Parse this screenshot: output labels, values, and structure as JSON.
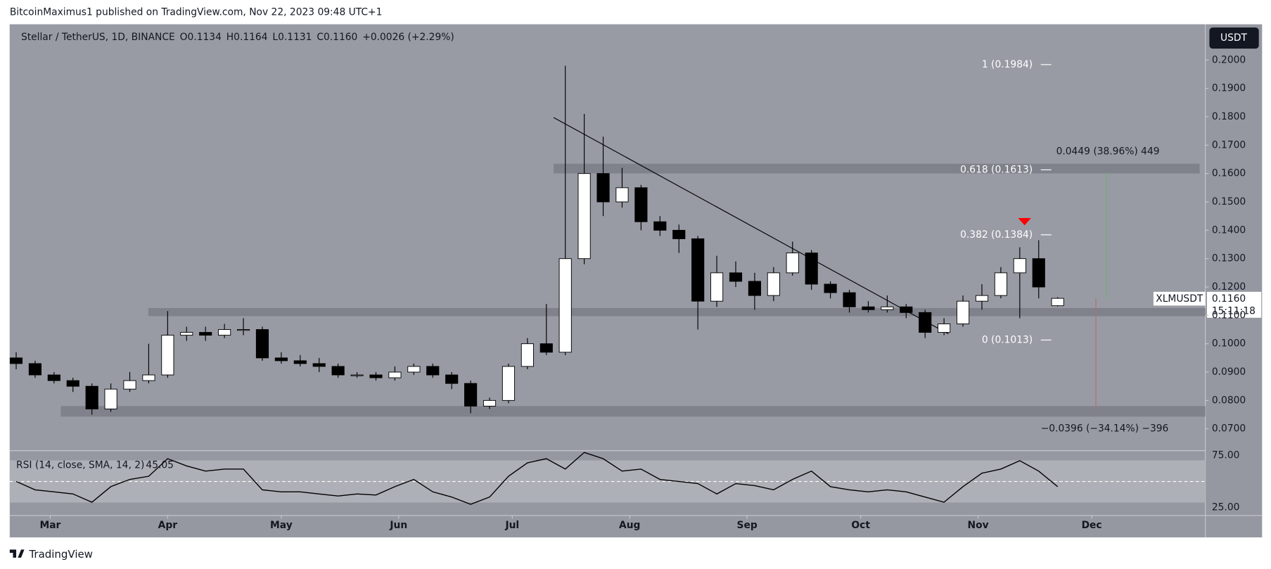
{
  "header": {
    "published": "BitcoinMaximus1 published on TradingView.com, Nov 22, 2023 09:48 UTC+1"
  },
  "footer": {
    "brand": "TradingView"
  },
  "chart_data": {
    "type": "candlestick",
    "legend": {
      "symbol": "Stellar / TetherUS, 1D, BINANCE",
      "ohlc": [
        "O0.1134",
        "H0.1164",
        "L0.1131",
        "C0.1160"
      ],
      "change": "+0.0026 (+2.29%)"
    },
    "currency": "USDT",
    "price_label": {
      "symbol": "XLMUSDT",
      "price": "0.1160",
      "countdown": "15:11:18"
    },
    "up_color": "#ffffff",
    "down_color": "#000000",
    "x": [
      -9,
      -4,
      1,
      6,
      11,
      16,
      21,
      26,
      31,
      36,
      41,
      46,
      51,
      56,
      61,
      66,
      71,
      76,
      81,
      86,
      91,
      96,
      101,
      106,
      111,
      116,
      121,
      126,
      131,
      136,
      141,
      146,
      151,
      156,
      161,
      166,
      171,
      176,
      181,
      186,
      191,
      196,
      201,
      206,
      211,
      216,
      221,
      226,
      231,
      236,
      241,
      246,
      251,
      256,
      261,
      266
    ],
    "open": [
      0.095,
      0.093,
      0.089,
      0.087,
      0.085,
      0.077,
      0.084,
      0.087,
      0.089,
      0.103,
      0.104,
      0.103,
      0.105,
      0.105,
      0.095,
      0.094,
      0.093,
      0.092,
      0.089,
      0.089,
      0.088,
      0.09,
      0.092,
      0.089,
      0.086,
      0.078,
      0.08,
      0.092,
      0.1,
      0.097,
      0.13,
      0.16,
      0.15,
      0.155,
      0.143,
      0.14,
      0.137,
      0.115,
      0.125,
      0.122,
      0.117,
      0.125,
      0.132,
      0.121,
      0.118,
      0.113,
      0.112,
      0.113,
      0.111,
      0.104,
      0.107,
      0.115,
      0.117,
      0.125,
      0.13,
      0.1134
    ],
    "high": [
      0.097,
      0.094,
      0.09,
      0.088,
      0.086,
      0.086,
      0.09,
      0.1,
      0.1115,
      0.106,
      0.106,
      0.107,
      0.109,
      0.106,
      0.097,
      0.096,
      0.095,
      0.093,
      0.09,
      0.09,
      0.092,
      0.093,
      0.093,
      0.09,
      0.087,
      0.081,
      0.093,
      0.102,
      0.114,
      0.198,
      0.181,
      0.173,
      0.162,
      0.156,
      0.145,
      0.142,
      0.138,
      0.131,
      0.129,
      0.125,
      0.127,
      0.136,
      0.133,
      0.122,
      0.119,
      0.115,
      0.117,
      0.114,
      0.112,
      0.109,
      0.117,
      0.121,
      0.127,
      0.134,
      0.1365,
      0.1164
    ],
    "low": [
      0.091,
      0.088,
      0.086,
      0.083,
      0.075,
      0.076,
      0.083,
      0.086,
      0.088,
      0.101,
      0.101,
      0.102,
      0.103,
      0.094,
      0.093,
      0.092,
      0.09,
      0.088,
      0.088,
      0.087,
      0.087,
      0.089,
      0.088,
      0.084,
      0.0755,
      0.077,
      0.079,
      0.091,
      0.096,
      0.096,
      0.128,
      0.145,
      0.148,
      0.14,
      0.138,
      0.132,
      0.105,
      0.113,
      0.12,
      0.112,
      0.115,
      0.124,
      0.119,
      0.116,
      0.111,
      0.111,
      0.111,
      0.109,
      0.102,
      0.103,
      0.106,
      0.112,
      0.116,
      0.109,
      0.116,
      0.1131
    ],
    "close": [
      0.093,
      0.089,
      0.087,
      0.085,
      0.077,
      0.084,
      0.087,
      0.089,
      0.103,
      0.104,
      0.103,
      0.105,
      0.105,
      0.095,
      0.094,
      0.093,
      0.092,
      0.089,
      0.089,
      0.088,
      0.09,
      0.092,
      0.089,
      0.086,
      0.078,
      0.08,
      0.092,
      0.1,
      0.097,
      0.13,
      0.16,
      0.15,
      0.155,
      0.143,
      0.14,
      0.137,
      0.115,
      0.125,
      0.122,
      0.117,
      0.125,
      0.132,
      0.121,
      0.118,
      0.113,
      0.112,
      0.113,
      0.111,
      0.104,
      0.107,
      0.115,
      0.117,
      0.125,
      0.13,
      0.12,
      0.116
    ],
    "xlim": [
      -10.7,
      305
    ],
    "xticks": [
      {
        "value": 0,
        "label": "Mar"
      },
      {
        "value": 31,
        "label": "Apr"
      },
      {
        "value": 61,
        "label": "May"
      },
      {
        "value": 92,
        "label": "Jun"
      },
      {
        "value": 122,
        "label": "Jul"
      },
      {
        "value": 153,
        "label": "Aug"
      },
      {
        "value": 184,
        "label": "Sep"
      },
      {
        "value": 214,
        "label": "Oct"
      },
      {
        "value": 245,
        "label": "Nov"
      },
      {
        "value": 275,
        "label": "Dec"
      }
    ],
    "ylim": [
      0.0623,
      0.2126
    ],
    "yticks": [
      {
        "value": 0.07,
        "label": "0.0700"
      },
      {
        "value": 0.08,
        "label": "0.0800"
      },
      {
        "value": 0.09,
        "label": "0.0900"
      },
      {
        "value": 0.1,
        "label": "0.1000"
      },
      {
        "value": 0.11,
        "label": "0.1100"
      },
      {
        "value": 0.12,
        "label": "0.1200"
      },
      {
        "value": 0.13,
        "label": "0.1300"
      },
      {
        "value": 0.14,
        "label": "0.1400"
      },
      {
        "value": 0.15,
        "label": "0.1500"
      },
      {
        "value": 0.16,
        "label": "0.1600"
      },
      {
        "value": 0.17,
        "label": "0.1700"
      },
      {
        "value": 0.18,
        "label": "0.1800"
      },
      {
        "value": 0.19,
        "label": "0.1900"
      },
      {
        "value": 0.2,
        "label": "0.2000"
      }
    ],
    "annotations": [
      {
        "text": "1 (0.1984)",
        "value": 0.1984
      },
      {
        "text": "0.618 (0.1613)",
        "value": 0.1613
      },
      {
        "text": "0.382 (0.1384)",
        "value": 0.1384
      },
      {
        "text": "0 (0.1013)",
        "value": 0.1013
      }
    ],
    "measurements": [
      "0.0449 (38.96%) 449",
      "−0.0396 (−34.14%) −396"
    ],
    "rsi": {
      "label": "RSI (14, close, SMA, 14, 2)",
      "value_label": "45.05",
      "color": "#000000",
      "values": [
        50,
        42,
        40,
        38,
        30,
        45,
        52,
        55,
        72,
        65,
        60,
        62,
        62,
        42,
        40,
        40,
        38,
        36,
        38,
        37,
        45,
        52,
        40,
        35,
        28,
        35,
        55,
        68,
        72,
        62,
        78,
        72,
        60,
        62,
        52,
        50,
        48,
        38,
        48,
        46,
        42,
        52,
        60,
        45,
        42,
        40,
        42,
        40,
        35,
        30,
        45,
        58,
        62,
        70,
        60,
        45.05
      ],
      "ylim": [
        17.2,
        79.7
      ],
      "yticks": [
        {
          "value": 75,
          "label": "75.00"
        },
        {
          "value": 25,
          "label": "25.00"
        }
      ]
    }
  }
}
